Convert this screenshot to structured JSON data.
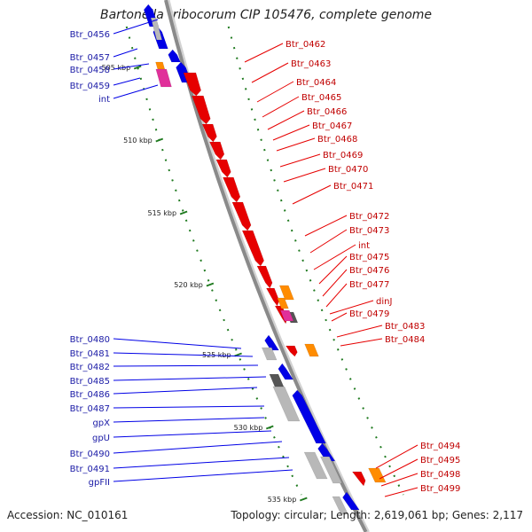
{
  "title": "Bartonella tribocorum CIP 105476, complete genome",
  "accession": "Accession: NC_010161",
  "summary": "Topology: circular; Length: 2,619,061 bp; Genes: 2,117",
  "colors": {
    "forward": "#0000e6",
    "reverse": "#e60000",
    "rna": "#ff8c00",
    "trna": "#e0309a",
    "pseudo": "#b8b8b8",
    "dark": "#555555",
    "tick": "#1f7a1f",
    "backbone": "#8a8a8a"
  },
  "ticks": [
    "505 kbp",
    "510 kbp",
    "515 kbp",
    "520 kbp",
    "525 kbp",
    "530 kbp",
    "535 kbp"
  ],
  "left_labels": [
    "Btr_0456",
    "Btr_0457",
    "Btr_0458",
    "Btr_0459",
    "int",
    "Btr_0480",
    "Btr_0481",
    "Btr_0482",
    "Btr_0485",
    "Btr_0486",
    "Btr_0487",
    "gpX",
    "gpU",
    "Btr_0490",
    "Btr_0491",
    "gpFII"
  ],
  "right_labels": [
    "Btr_0462",
    "Btr_0463",
    "Btr_0464",
    "Btr_0465",
    "Btr_0466",
    "Btr_0467",
    "Btr_0468",
    "Btr_0469",
    "Btr_0470",
    "Btr_0471",
    "Btr_0472",
    "Btr_0473",
    "int",
    "Btr_0475",
    "Btr_0476",
    "Btr_0477",
    "dinJ",
    "Btr_0479",
    "Btr_0483",
    "Btr_0484",
    "Btr_0494",
    "Btr_0495",
    "Btr_0498",
    "Btr_0499"
  ]
}
